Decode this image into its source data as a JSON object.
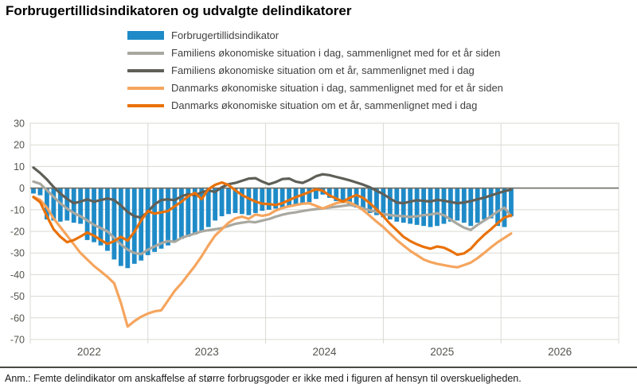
{
  "title": "Forbrugertillidsindikatoren og udvalgte delindikatorer",
  "footnote": "Anm.: Femte delindikator om anskaffelse af større forbrugsgoder er ikke med i figuren af hensyn til overskueligheden.",
  "colors": {
    "bar_blue": "#1e8bc8",
    "light_gray": "#a9a8a0",
    "dark_gray": "#5f5f58",
    "light_orange": "#f5a55e",
    "dark_orange": "#e97109",
    "grid": "#d9d9d3",
    "zero_line": "#6d6d66",
    "axis_text": "#55554e"
  },
  "chart_data": {
    "type": "bar",
    "subtype": "bar-and-line combo, monthly observations",
    "title": "Forbrugertillidsindikatoren og udvalgte delindikatorer",
    "xlabel": "",
    "ylabel": "",
    "ylim": [
      -70,
      30
    ],
    "y_ticks": [
      30,
      20,
      10,
      0,
      -10,
      -20,
      -30,
      -40,
      -50,
      -60,
      -70
    ],
    "x_year_labels": [
      "2022",
      "2023",
      "2024",
      "2025",
      "2026"
    ],
    "grid": "horizontal lines every 10 units, vertical lines at year boundaries",
    "legend_position": "top, vertical list",
    "series": [
      {
        "name": "Forbrugertillidsindikator",
        "type": "bar",
        "color": "#1e8bc8",
        "values": [
          -2.5,
          -3.3,
          -14.5,
          -15,
          -15.5,
          -15,
          -16,
          -16.5,
          -24,
          -25,
          -26.5,
          -29,
          -33,
          -36,
          -37,
          -35,
          -33.5,
          -31,
          -29.5,
          -28,
          -26.5,
          -25,
          -23.5,
          -22.5,
          -21.5,
          -20,
          -18,
          -15,
          -13,
          -12,
          -11.5,
          -12,
          -12.5,
          -11.5,
          -10.5,
          -10,
          -9.5,
          -9,
          -8.5,
          -8,
          -7.5,
          -6.5,
          -5,
          -3,
          -4.5,
          -6,
          -7,
          -8,
          -9,
          -10,
          -11.5,
          -12.5,
          -13.5,
          -14.5,
          -15.5,
          -16,
          -16.5,
          -17,
          -17.5,
          -18,
          -17.5,
          -16.5,
          -15.5,
          -15,
          -16,
          -17.5,
          -16,
          -14.5,
          -14,
          -17.5,
          -18,
          -13
        ]
      },
      {
        "name": "Familiens økonomiske situation i dag, sammenlignet med for et år siden",
        "type": "line",
        "color": "#a9a8a0",
        "values": [
          3,
          2,
          -1,
          -4,
          -7,
          -9.5,
          -11.5,
          -13,
          -15,
          -17,
          -18.5,
          -20,
          -23,
          -26,
          -28.5,
          -30,
          -30.5,
          -28.5,
          -27,
          -25.5,
          -24.5,
          -24.8,
          -23,
          -22,
          -21,
          -20,
          -19.5,
          -19,
          -18.5,
          -17.5,
          -16.5,
          -16,
          -15.5,
          -15.8,
          -15,
          -14.3,
          -13.2,
          -12.3,
          -11.6,
          -11.2,
          -10.6,
          -10.1,
          -9.7,
          -9.4,
          -9,
          -8.6,
          -8.2,
          -7.8,
          -8.3,
          -9.3,
          -10.3,
          -11,
          -11.9,
          -12.5,
          -12.8,
          -13,
          -13.3,
          -13,
          -12.5,
          -12.2,
          -11.6,
          -12.5,
          -14.5,
          -16.5,
          -18.3,
          -19.3,
          -17,
          -15,
          -13,
          -10.8,
          -9,
          -13
        ]
      },
      {
        "name": "Familiens økonomiske situation om et år, sammenlignet med i dag",
        "type": "line",
        "color": "#5f5f58",
        "values": [
          9.5,
          7,
          4,
          0.5,
          -2.5,
          -5,
          -7,
          -6.2,
          -5.2,
          -6.3,
          -5.5,
          -4.8,
          -5.5,
          -8,
          -11,
          -13,
          -13.6,
          -11,
          -7.5,
          -5.5,
          -5.2,
          -5.6,
          -3.8,
          -2.8,
          -3.3,
          -2,
          -1,
          -1.8,
          0.4,
          1.8,
          2.4,
          3.4,
          4.4,
          4.6,
          3,
          1.8,
          2.8,
          4.2,
          4.4,
          3,
          2.4,
          3.8,
          5.5,
          6.4,
          6,
          5.2,
          4.4,
          3.6,
          2.6,
          1.6,
          0.4,
          -1.2,
          -2.8,
          -4.8,
          -6.6,
          -7,
          -6.2,
          -5.6,
          -5.9,
          -6.2,
          -5.4,
          -5.8,
          -6.4,
          -7,
          -6.6,
          -6,
          -5.2,
          -4.4,
          -3.4,
          -2.4,
          -1.4,
          -0.7
        ]
      },
      {
        "name": "Danmarks økonomiske situation i dag, sammenlignet med for et år siden",
        "type": "line",
        "color": "#f5a55e",
        "values": [
          -4,
          -5.5,
          -9,
          -14,
          -18,
          -22,
          -26,
          -30,
          -33,
          -36,
          -38.5,
          -41,
          -44,
          -53,
          -64,
          -61.5,
          -59.5,
          -58,
          -57,
          -56.5,
          -52,
          -47.5,
          -44,
          -40,
          -36,
          -31.5,
          -26.5,
          -22,
          -19,
          -16,
          -14,
          -13.2,
          -14.2,
          -12.2,
          -12.8,
          -12.2,
          -10.4,
          -9.2,
          -8.4,
          -7.8,
          -7.2,
          -7,
          -8.2,
          -9.4,
          -8.2,
          -7,
          -6.3,
          -6.6,
          -8.2,
          -10.2,
          -12.8,
          -15.5,
          -18,
          -21,
          -24,
          -26.5,
          -29,
          -31,
          -33,
          -34.2,
          -35,
          -35.6,
          -36.2,
          -36.6,
          -35.6,
          -34.4,
          -32.4,
          -30,
          -27.4,
          -25,
          -23,
          -21
        ]
      },
      {
        "name": "Danmarks økonomiske situation om et år, sammenlignet med i dag",
        "type": "line",
        "color": "#e97109",
        "values": [
          -4.2,
          -6.5,
          -13,
          -19,
          -22.5,
          -25,
          -24,
          -22.4,
          -20.5,
          -22,
          -24,
          -25.8,
          -24.5,
          -22.5,
          -24.3,
          -20.2,
          -15,
          -10.6,
          -11.8,
          -11.2,
          -10.6,
          -8.4,
          -6.3,
          -3.8,
          -2.2,
          -5.1,
          -0.5,
          1.5,
          2.6,
          1.4,
          -1,
          -3.2,
          -4.8,
          -6.2,
          -7.2,
          -7.4,
          -7.8,
          -7,
          -5.5,
          -4.2,
          -3,
          -1.8,
          -0.5,
          -1.2,
          -3.4,
          -4.8,
          -6.2,
          -4.5,
          -3.2,
          -4.5,
          -7,
          -9.8,
          -13,
          -16.5,
          -19.5,
          -22.5,
          -24.5,
          -26,
          -27.2,
          -28,
          -27,
          -27.5,
          -29,
          -30.8,
          -30.2,
          -28,
          -24.6,
          -21.6,
          -19,
          -16.2,
          -13.6,
          -12.6
        ]
      }
    ]
  }
}
